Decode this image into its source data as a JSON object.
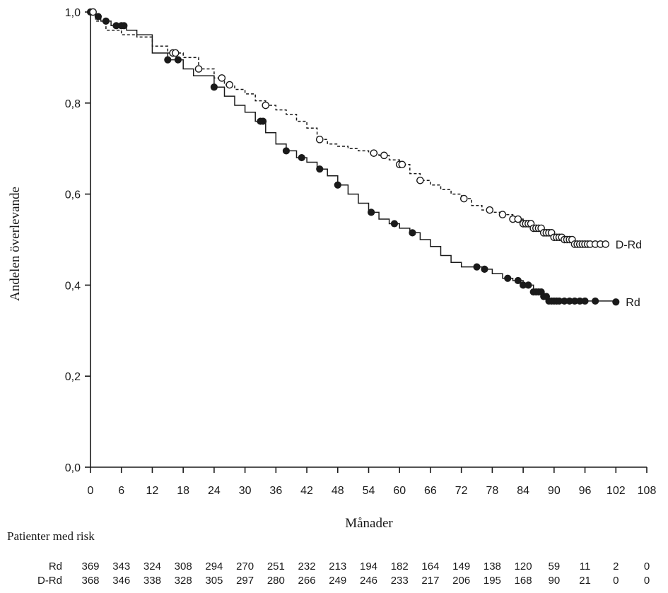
{
  "chart_data": {
    "type": "line",
    "title": "",
    "xlabel": "Månader",
    "ylabel": "Andelen överlevande",
    "xlim": [
      0,
      108
    ],
    "ylim": [
      0,
      1
    ],
    "x_ticks": [
      0,
      6,
      12,
      18,
      24,
      30,
      36,
      42,
      48,
      54,
      60,
      66,
      72,
      78,
      84,
      90,
      96,
      102,
      108
    ],
    "y_ticks": [
      {
        "value": 0.0,
        "label": "0,0"
      },
      {
        "value": 0.2,
        "label": "0,2"
      },
      {
        "value": 0.4,
        "label": "0,4"
      },
      {
        "value": 0.6,
        "label": "0,6"
      },
      {
        "value": 0.8,
        "label": "0,8"
      },
      {
        "value": 1.0,
        "label": "1,0"
      }
    ],
    "series": [
      {
        "name": "Rd",
        "label": "Rd",
        "line_style": "solid",
        "marker": "filled-circle",
        "color": "#1a1a1a",
        "points": [
          [
            0,
            1.0
          ],
          [
            1,
            0.99
          ],
          [
            2,
            0.98
          ],
          [
            4,
            0.97
          ],
          [
            7,
            0.96
          ],
          [
            9,
            0.95
          ],
          [
            12,
            0.91
          ],
          [
            15,
            0.895
          ],
          [
            18,
            0.875
          ],
          [
            20,
            0.86
          ],
          [
            24,
            0.835
          ],
          [
            26,
            0.815
          ],
          [
            28,
            0.795
          ],
          [
            30,
            0.78
          ],
          [
            32,
            0.76
          ],
          [
            34,
            0.735
          ],
          [
            36,
            0.71
          ],
          [
            38,
            0.695
          ],
          [
            40,
            0.68
          ],
          [
            42,
            0.67
          ],
          [
            44,
            0.655
          ],
          [
            46,
            0.64
          ],
          [
            48,
            0.62
          ],
          [
            50,
            0.6
          ],
          [
            52,
            0.58
          ],
          [
            54,
            0.56
          ],
          [
            56,
            0.545
          ],
          [
            58,
            0.535
          ],
          [
            60,
            0.525
          ],
          [
            62,
            0.515
          ],
          [
            64,
            0.5
          ],
          [
            66,
            0.485
          ],
          [
            68,
            0.465
          ],
          [
            70,
            0.45
          ],
          [
            72,
            0.44
          ],
          [
            74,
            0.44
          ],
          [
            76,
            0.435
          ],
          [
            78,
            0.425
          ],
          [
            80,
            0.415
          ],
          [
            82,
            0.41
          ],
          [
            84,
            0.4
          ],
          [
            86,
            0.385
          ],
          [
            88,
            0.375
          ],
          [
            89,
            0.365
          ],
          [
            92,
            0.365
          ],
          [
            96,
            0.365
          ],
          [
            102,
            0.363
          ]
        ],
        "censor_marks": [
          0,
          1.5,
          3,
          5,
          6,
          6.5,
          15,
          17,
          24,
          33,
          33.5,
          38,
          41,
          44.5,
          48,
          54.5,
          59,
          62.5,
          75,
          76.5,
          81,
          83,
          84,
          85,
          86,
          86.5,
          87,
          87.5,
          88,
          88.5,
          89,
          89.5,
          90,
          90.5,
          91,
          92,
          93,
          94,
          95,
          96,
          98,
          102
        ]
      },
      {
        "name": "D-Rd",
        "label": "D-Rd",
        "line_style": "dashed",
        "marker": "open-circle",
        "color": "#1a1a1a",
        "points": [
          [
            0,
            1.0
          ],
          [
            1,
            0.98
          ],
          [
            3,
            0.96
          ],
          [
            6,
            0.95
          ],
          [
            9,
            0.945
          ],
          [
            12,
            0.925
          ],
          [
            15,
            0.91
          ],
          [
            18,
            0.9
          ],
          [
            21,
            0.875
          ],
          [
            24,
            0.855
          ],
          [
            26,
            0.84
          ],
          [
            28,
            0.83
          ],
          [
            30,
            0.82
          ],
          [
            32,
            0.805
          ],
          [
            34,
            0.795
          ],
          [
            36,
            0.785
          ],
          [
            38,
            0.775
          ],
          [
            40,
            0.76
          ],
          [
            42,
            0.745
          ],
          [
            44,
            0.72
          ],
          [
            46,
            0.71
          ],
          [
            48,
            0.705
          ],
          [
            50,
            0.7
          ],
          [
            52,
            0.695
          ],
          [
            54,
            0.69
          ],
          [
            56,
            0.685
          ],
          [
            58,
            0.675
          ],
          [
            60,
            0.665
          ],
          [
            62,
            0.645
          ],
          [
            64,
            0.63
          ],
          [
            66,
            0.62
          ],
          [
            68,
            0.61
          ],
          [
            70,
            0.6
          ],
          [
            72,
            0.59
          ],
          [
            74,
            0.575
          ],
          [
            76,
            0.565
          ],
          [
            78,
            0.56
          ],
          [
            80,
            0.555
          ],
          [
            82,
            0.545
          ],
          [
            84,
            0.535
          ],
          [
            86,
            0.525
          ],
          [
            88,
            0.515
          ],
          [
            90,
            0.505
          ],
          [
            92,
            0.5
          ],
          [
            94,
            0.49
          ],
          [
            96,
            0.49
          ],
          [
            100,
            0.49
          ]
        ],
        "censor_marks": [
          0.5,
          16,
          16.5,
          21,
          25.5,
          27,
          34,
          44.5,
          55,
          57,
          60,
          60.5,
          64,
          72.5,
          77.5,
          80,
          82,
          83,
          84,
          84.5,
          85,
          85.5,
          86,
          86.5,
          87,
          87.5,
          88,
          88.5,
          89,
          89.5,
          90,
          90.5,
          91,
          91.5,
          92,
          92.5,
          93,
          93.5,
          94,
          94.5,
          95,
          95.5,
          96,
          96.5,
          97,
          98,
          99,
          100
        ]
      }
    ],
    "risk_table": {
      "title": "Patienter med risk",
      "rows": [
        {
          "label": "Rd",
          "values": [
            "369",
            "343",
            "324",
            "308",
            "294",
            "270",
            "251",
            "232",
            "213",
            "194",
            "182",
            "164",
            "149",
            "138",
            "120",
            "59",
            "11",
            "2",
            "0"
          ]
        },
        {
          "label": "D-Rd",
          "values": [
            "368",
            "346",
            "338",
            "328",
            "305",
            "297",
            "280",
            "266",
            "249",
            "246",
            "233",
            "217",
            "206",
            "195",
            "168",
            "90",
            "21",
            "0",
            "0"
          ]
        }
      ]
    }
  }
}
